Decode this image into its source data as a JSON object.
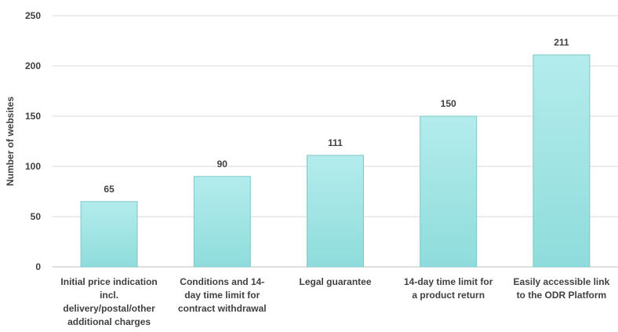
{
  "chart_data": {
    "type": "bar",
    "title": "",
    "xlabel": "",
    "ylabel": "Number of websites",
    "ylim": [
      0,
      250
    ],
    "yticks": [
      0,
      50,
      100,
      150,
      200,
      250
    ],
    "grid": true,
    "legend": "none",
    "categories": [
      [
        "Initial price indication",
        "incl.",
        "delivery/postal/other",
        "additional charges"
      ],
      [
        "Conditions and 14-",
        "day time limit for",
        "contract withdrawal"
      ],
      [
        "Legal guarantee"
      ],
      [
        "14-day time limit for",
        "a product return"
      ],
      [
        "Easily accessible link",
        "to the ODR Platform"
      ]
    ],
    "values": [
      65,
      90,
      111,
      150,
      211
    ],
    "colors": {
      "bar_fill_top": "#b4ecec",
      "bar_fill_bottom": "#8fdcdc",
      "bar_stroke": "#7fc7c7"
    }
  }
}
